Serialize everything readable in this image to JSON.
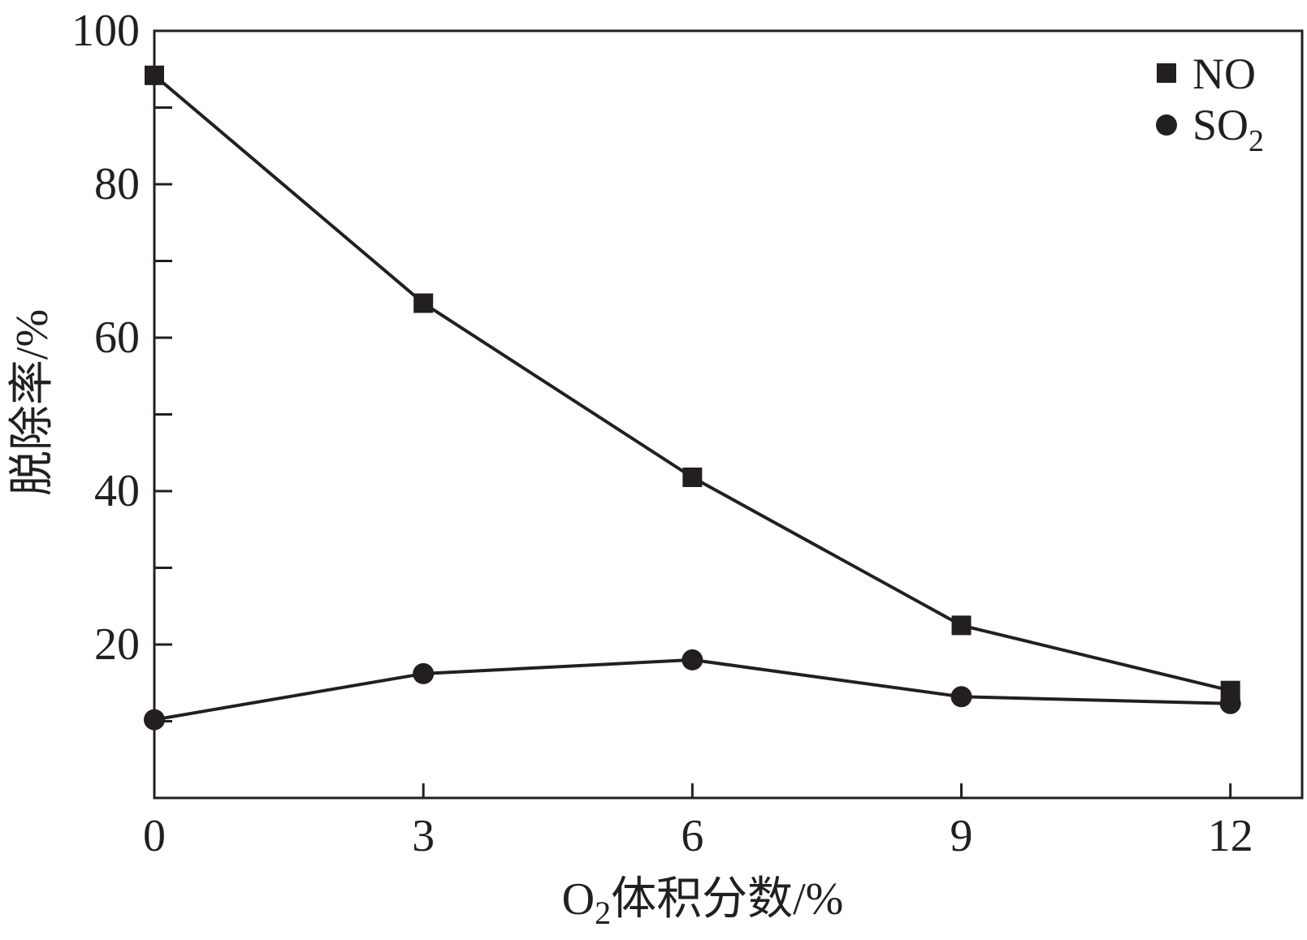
{
  "chart_data": {
    "type": "line",
    "xlabel": {
      "base": "O",
      "sub": "2",
      "rest": "体积分数/%"
    },
    "ylabel": "脱除率/%",
    "xlim": [
      0,
      12.8
    ],
    "ylim": [
      0,
      100
    ],
    "x": [
      0,
      3,
      6,
      9,
      12
    ],
    "x_ticks": [
      "0",
      "3",
      "6",
      "9",
      "12"
    ],
    "y_ticks": [
      "20",
      "40",
      "60",
      "80",
      "100"
    ],
    "y_minor_ticks": [
      10,
      30,
      50,
      70,
      90
    ],
    "legend_position": "top-right",
    "series": [
      {
        "name": "NO",
        "sub": "",
        "marker": "square",
        "values": [
          94.2,
          64.5,
          41.8,
          22.5,
          14.0
        ]
      },
      {
        "name": "SO",
        "sub": "2",
        "marker": "circle",
        "values": [
          10.2,
          16.2,
          18.0,
          13.2,
          12.3
        ]
      }
    ],
    "colors": {
      "ink": "#231f20"
    }
  }
}
